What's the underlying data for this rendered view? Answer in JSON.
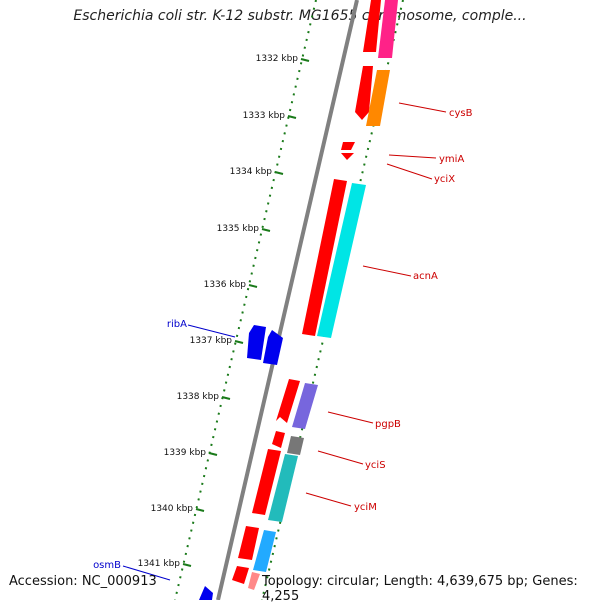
{
  "title": "Escherichia coli str. K-12 substr. MG1655 chromosome, comple...",
  "footer": {
    "accession": "Accession: NC_000913",
    "topology": "Topology: circular; Length: 4,639,675 bp; Genes: 4,255"
  },
  "colors": {
    "backbone": "#808080",
    "tick": "#1a7a1a",
    "forward_label": "#cc0000",
    "reverse_label": "#0000cc",
    "red": "#ff0000",
    "blue": "#0000ee",
    "magenta": "#ff2288",
    "orange": "#ff8800",
    "cyan": "#00e5e5",
    "purple": "#7766dd",
    "gray": "#777777",
    "teal": "#22bbbb",
    "skyblue": "#22aaff",
    "pink": "#ff8888"
  },
  "ticks": [
    {
      "kbp": 1332,
      "label": "1332 kbp"
    },
    {
      "kbp": 1333,
      "label": "1333 kbp"
    },
    {
      "kbp": 1334,
      "label": "1334 kbp"
    },
    {
      "kbp": 1335,
      "label": "1335 kbp"
    },
    {
      "kbp": 1336,
      "label": "1336 kbp"
    },
    {
      "kbp": 1337,
      "label": "1337 kbp"
    },
    {
      "kbp": 1338,
      "label": "1338 kbp"
    },
    {
      "kbp": 1339,
      "label": "1339 kbp"
    },
    {
      "kbp": 1340,
      "label": "1340 kbp"
    },
    {
      "kbp": 1341,
      "label": "1341 kbp"
    }
  ],
  "labels": [
    {
      "name": "cysB",
      "strand": "forward"
    },
    {
      "name": "ymiA",
      "strand": "forward"
    },
    {
      "name": "yciX",
      "strand": "forward"
    },
    {
      "name": "acnA",
      "strand": "forward"
    },
    {
      "name": "ribA",
      "strand": "reverse"
    },
    {
      "name": "pgpB",
      "strand": "forward"
    },
    {
      "name": "yciS",
      "strand": "forward"
    },
    {
      "name": "yciM",
      "strand": "forward"
    },
    {
      "name": "osmB",
      "strand": "reverse"
    }
  ]
}
